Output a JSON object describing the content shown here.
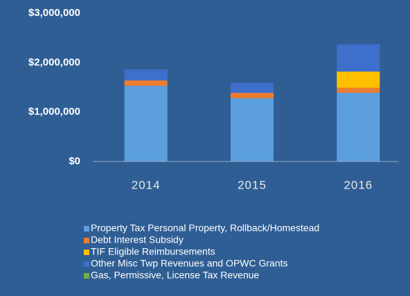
{
  "chart_data": {
    "type": "stacked_bar",
    "categories": [
      "2014",
      "2015",
      "2016"
    ],
    "series": [
      {
        "name": "Property Tax Personal Property, Rollback/Homestead",
        "color": "#5b9fdf",
        "values": [
          1530000,
          1280000,
          1390000
        ]
      },
      {
        "name": "Debt Interest Subsidy",
        "color": "#ed7d31",
        "values": [
          110000,
          110000,
          100000
        ]
      },
      {
        "name": "TIF Eligible Reimbursements",
        "color": "#ffc000",
        "values": [
          0,
          0,
          330000
        ]
      },
      {
        "name": "Other Misc Twp Revenues and OPWC Grants",
        "color": "#3f6fcc",
        "values": [
          220000,
          200000,
          550000
        ]
      },
      {
        "name": "Gas, Permissive, License Tax Revenue",
        "color": "#70ad47",
        "values": [
          0,
          0,
          0
        ]
      }
    ],
    "ylim": [
      0,
      3000000
    ],
    "yticks": [
      {
        "value": 0,
        "label": "$0"
      },
      {
        "value": 1000000,
        "label": "$1,000,000"
      },
      {
        "value": 2000000,
        "label": "$2,000,000"
      },
      {
        "value": 3000000,
        "label": "$3,000,000"
      }
    ],
    "grid": false
  }
}
